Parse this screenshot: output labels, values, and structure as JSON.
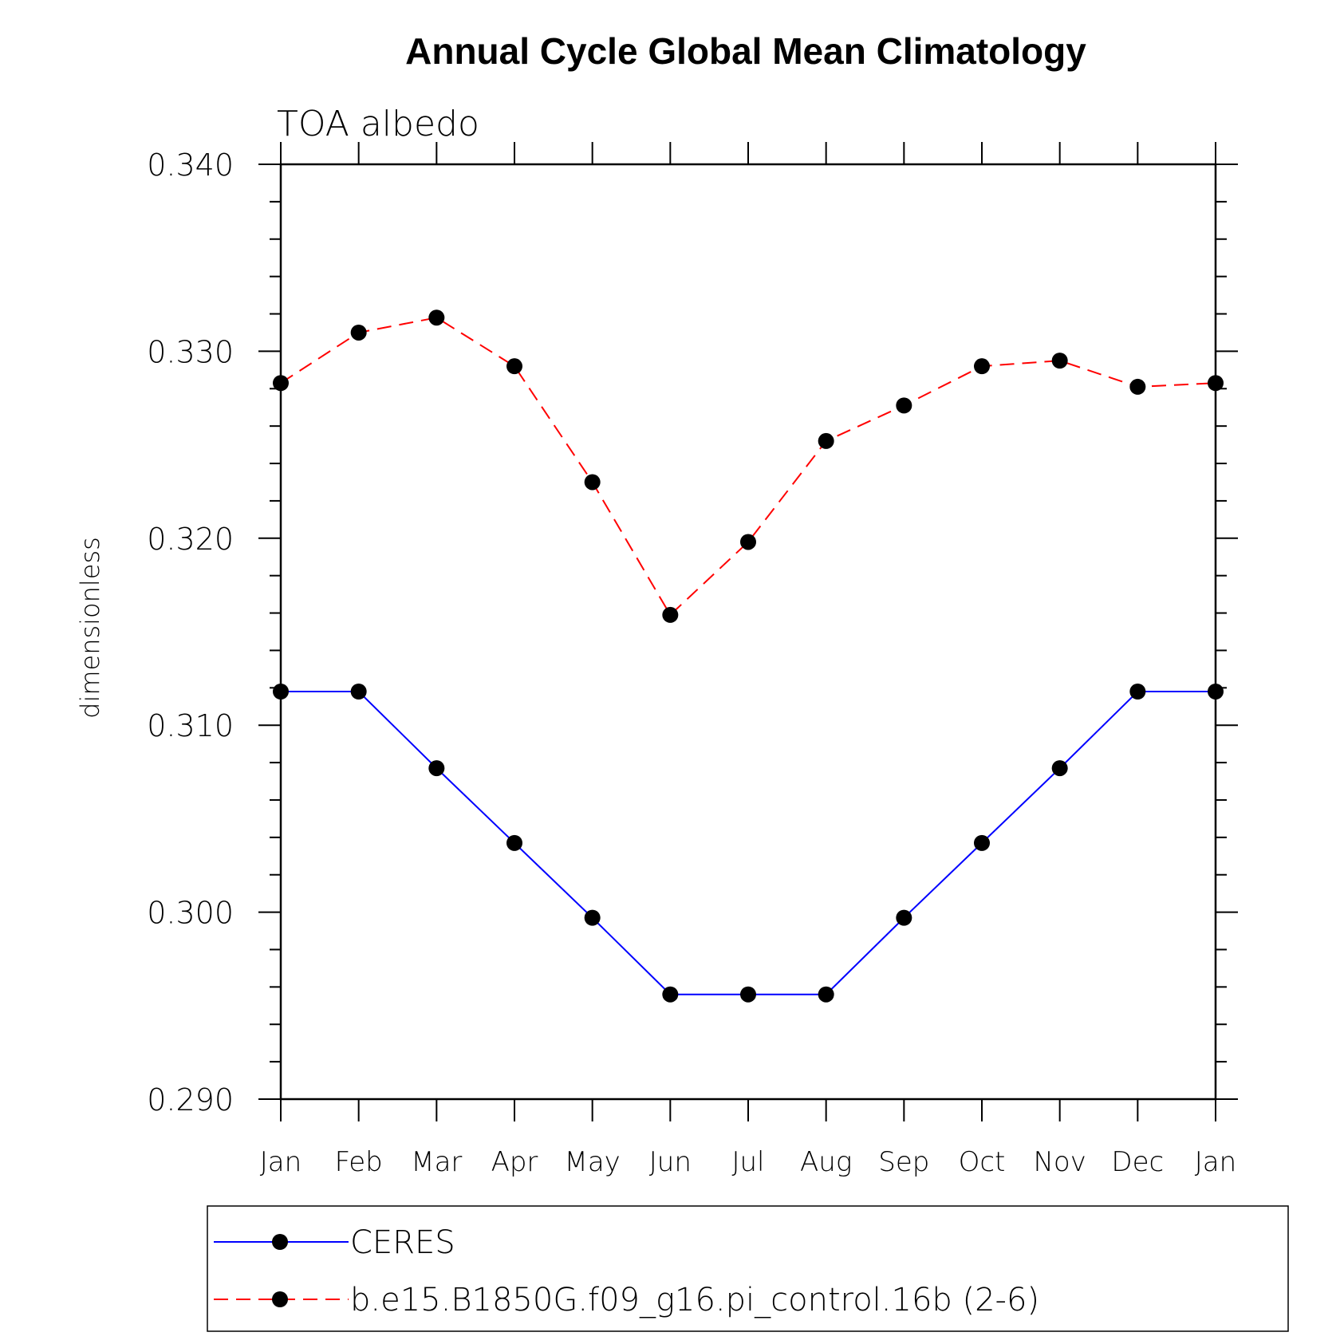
{
  "chart_data": {
    "type": "line",
    "title": "Annual Cycle Global Mean Climatology",
    "subtitle": "TOA albedo",
    "xlabel": "",
    "ylabel": "dimensionless",
    "categories": [
      "Jan",
      "Feb",
      "Mar",
      "Apr",
      "May",
      "Jun",
      "Jul",
      "Aug",
      "Sep",
      "Oct",
      "Nov",
      "Dec",
      "Jan"
    ],
    "ylim": [
      0.29,
      0.34
    ],
    "yticks": [
      "0.290",
      "0.300",
      "0.310",
      "0.320",
      "0.330",
      "0.340"
    ],
    "grid": false,
    "legend_position": "bottom",
    "series": [
      {
        "name": "CERES",
        "color": "#0000ff",
        "line_style": "solid",
        "marker": "filled-circle",
        "values": [
          0.3118,
          0.3118,
          0.3077,
          0.3037,
          0.2997,
          0.2956,
          0.2956,
          0.2956,
          0.2997,
          0.3037,
          0.3077,
          0.3118,
          0.3118
        ]
      },
      {
        "name": "b.e15.B1850G.f09_g16.pi_control.16b (2-6)",
        "color": "#ff0000",
        "line_style": "dashed",
        "marker": "filled-circle",
        "values": [
          0.3283,
          0.331,
          0.3318,
          0.3292,
          0.323,
          0.3159,
          0.3198,
          0.3252,
          0.3271,
          0.3292,
          0.3295,
          0.3281,
          0.3283
        ]
      }
    ]
  }
}
